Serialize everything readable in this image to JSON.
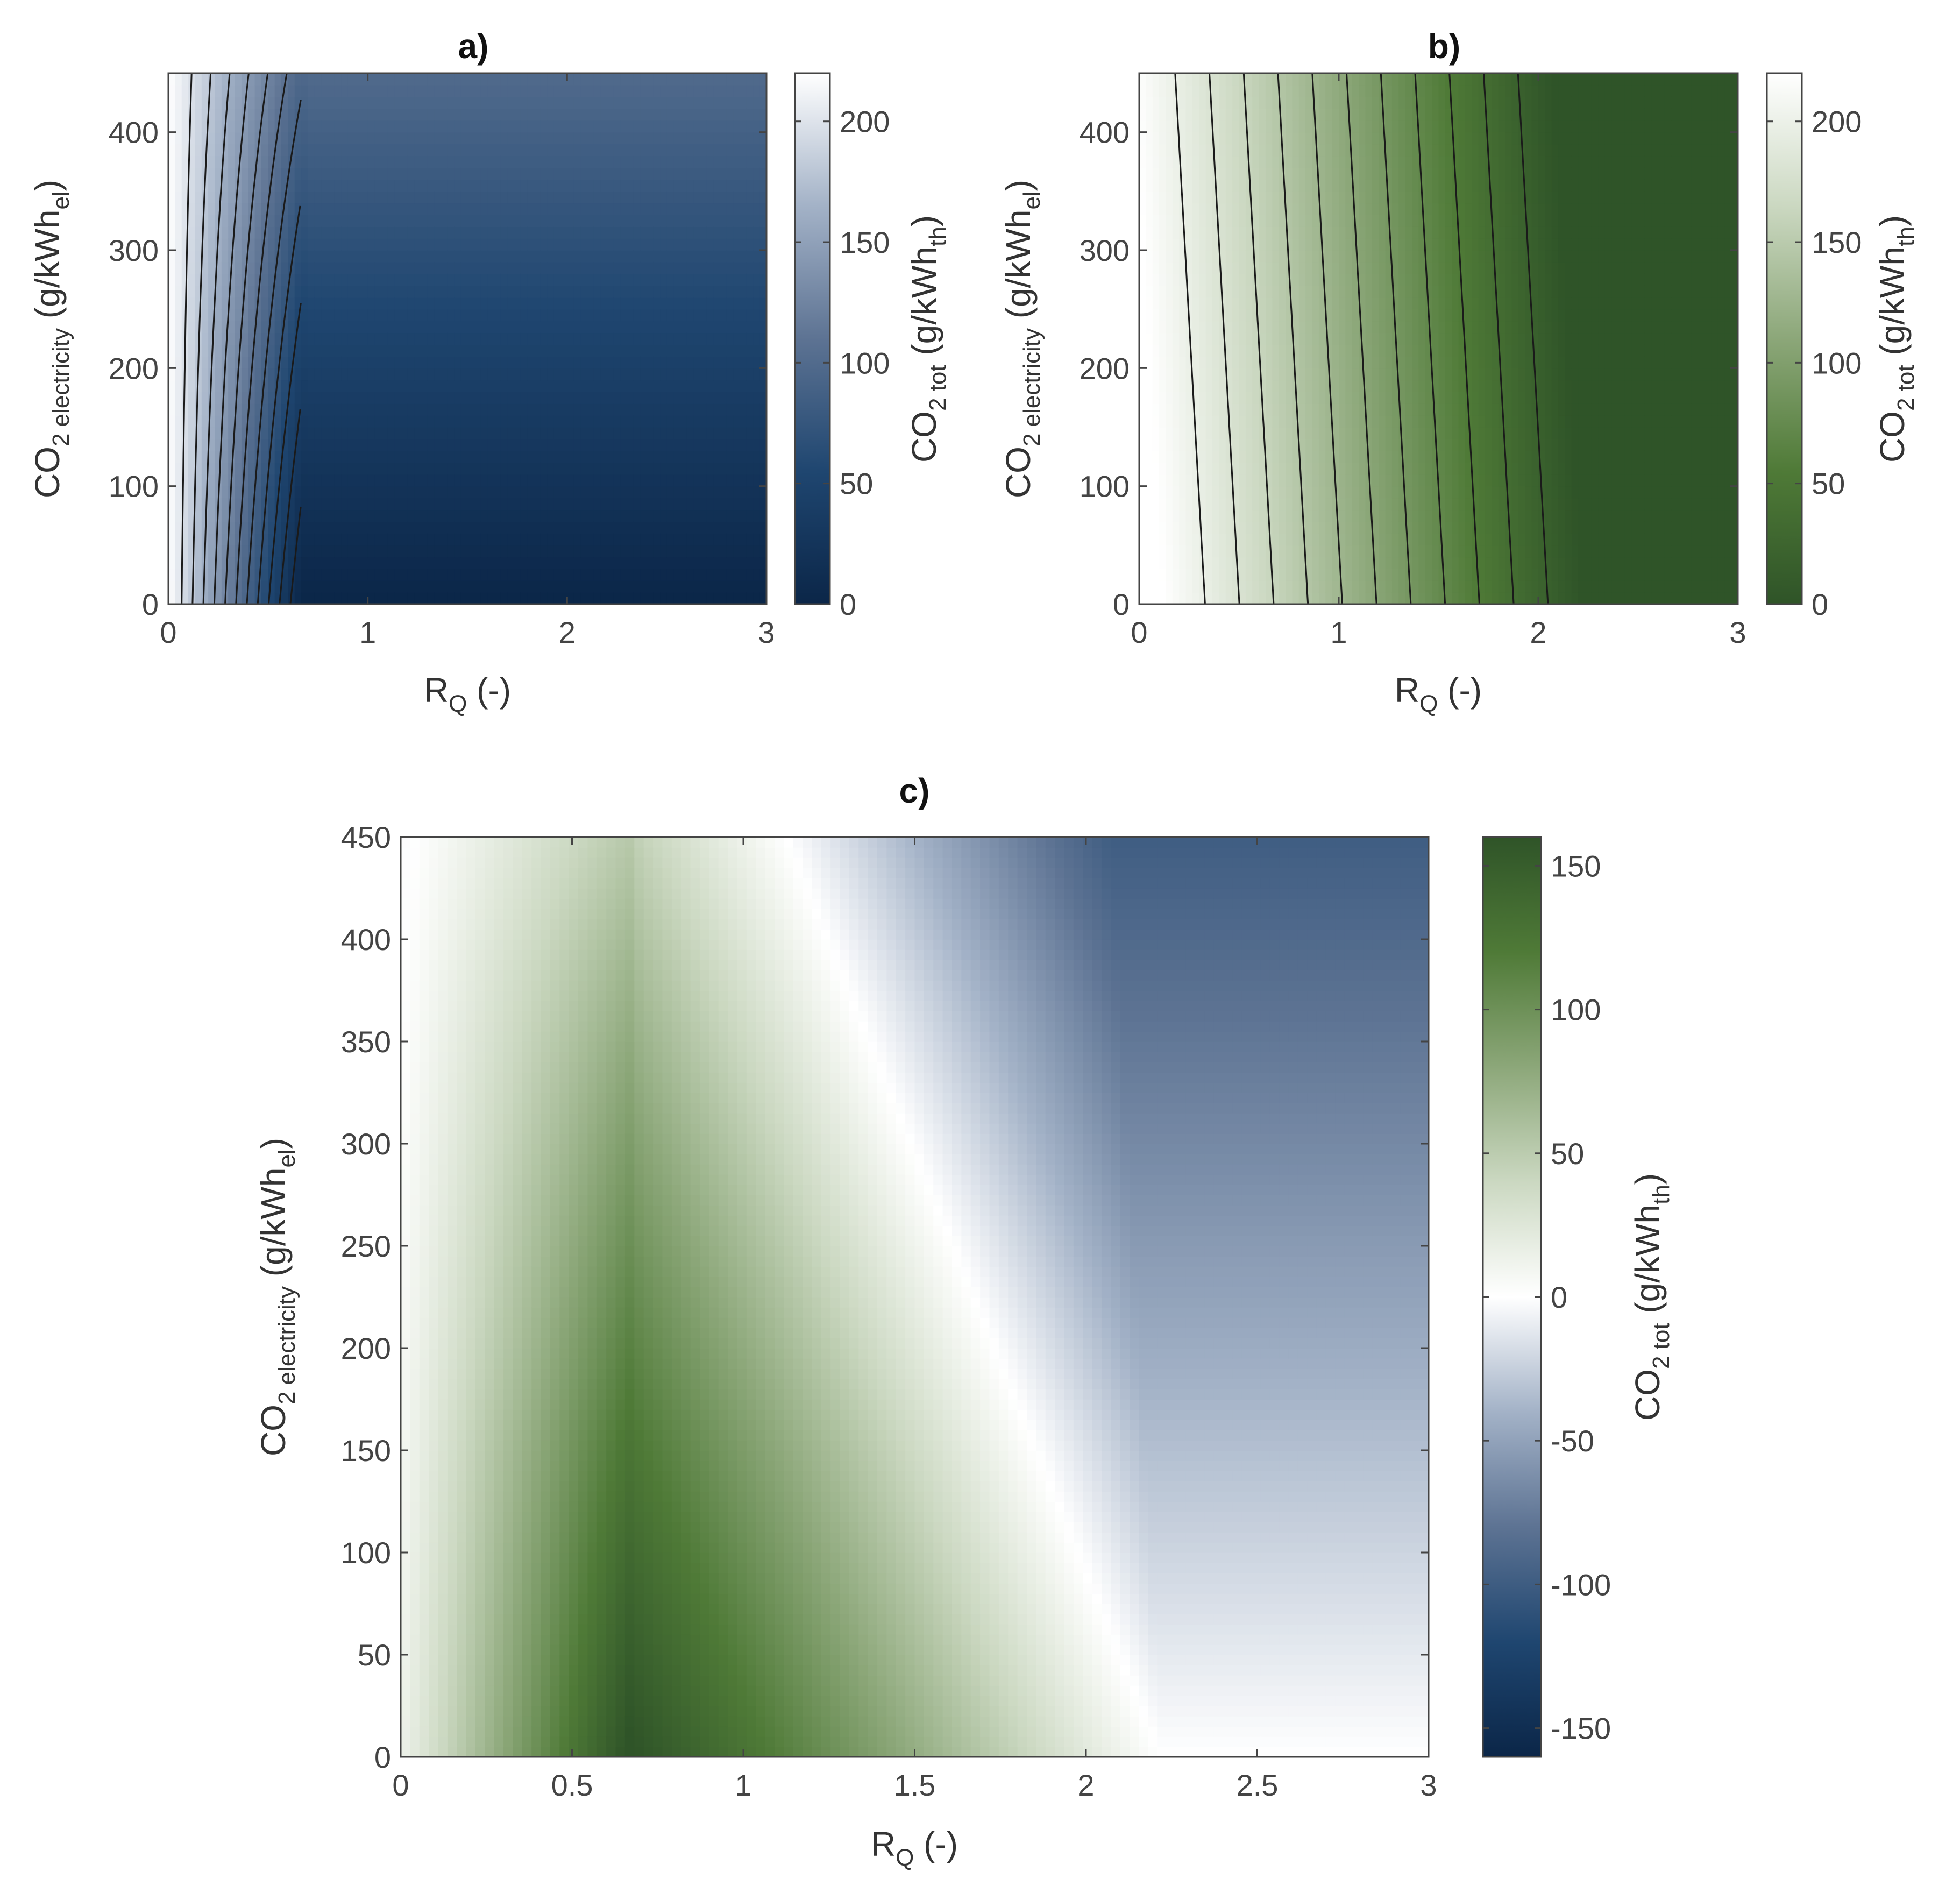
{
  "chart_data": [
    {
      "panel": "a",
      "title": "a)",
      "type": "contour",
      "x": {
        "label_main": "R",
        "label_sub": "Q",
        "label_tail": " (-)",
        "lim": [
          0,
          3
        ],
        "ticks": [
          0,
          1,
          2,
          3
        ]
      },
      "y": {
        "label_main": "CO",
        "label_sub1": "2 electricity",
        "label_mid": " (g/kWh",
        "label_sub2": "el",
        "label_tail": ")",
        "lim": [
          0,
          450
        ],
        "ticks": [
          0,
          100,
          200,
          300,
          400
        ]
      },
      "colorbar": {
        "label_main": "CO",
        "label_sub1": "2 tot",
        "label_mid": " (g/kWh",
        "label_sub2": "th",
        "label_tail": ")",
        "lim": [
          0,
          220
        ],
        "ticks": [
          0,
          50,
          100,
          150,
          200
        ]
      },
      "colormap": [
        "#0b2648",
        "#1f4670",
        "#5d7393",
        "#a3b2c7",
        "#ffffff"
      ],
      "contour_levels": [
        18,
        36,
        54,
        72,
        90,
        108,
        126,
        144,
        162,
        180,
        198
      ],
      "approx_model": "value = max(0, 220 - 330*R) + y*0.22*min(1, R/0.7)"
    },
    {
      "panel": "b",
      "title": "b)",
      "type": "contour",
      "x": {
        "label_main": "R",
        "label_sub": "Q",
        "label_tail": " (-)",
        "lim": [
          0,
          3
        ],
        "ticks": [
          0,
          1,
          2,
          3
        ]
      },
      "y": {
        "label_main": "CO",
        "label_sub1": "2 electricity",
        "label_mid": " (g/kWh",
        "label_sub2": "el",
        "label_tail": ")",
        "lim": [
          0,
          450
        ],
        "ticks": [
          0,
          100,
          200,
          300,
          400
        ]
      },
      "colorbar": {
        "label_main": "CO",
        "label_sub1": "2 tot",
        "label_mid": " (g/kWh",
        "label_sub2": "th",
        "label_tail": ")",
        "lim": [
          0,
          220
        ],
        "ticks": [
          0,
          50,
          100,
          150,
          200
        ]
      },
      "colormap": [
        "#2f5428",
        "#4f7a37",
        "#8ca779",
        "#cbd8c1",
        "#ffffff"
      ],
      "contour_levels": [
        18,
        36,
        54,
        72,
        90,
        108,
        126,
        144,
        162,
        180,
        198
      ],
      "approx_model": "value = max(0, 220*(1 - (R - 0.12 + 0.15*y/450)/2.1))"
    },
    {
      "panel": "c",
      "title": "c)",
      "type": "heatmap",
      "x": {
        "label_main": "R",
        "label_sub": "Q",
        "label_tail": " (-)",
        "lim": [
          0,
          3
        ],
        "ticks": [
          0,
          0.5,
          1,
          1.5,
          2,
          2.5,
          3
        ]
      },
      "y": {
        "label_main": "CO",
        "label_sub1": "2 electricity",
        "label_mid": " (g/kWh",
        "label_sub2": "el",
        "label_tail": ")",
        "lim": [
          0,
          450
        ],
        "ticks": [
          0,
          50,
          100,
          150,
          200,
          250,
          300,
          350,
          400,
          450
        ]
      },
      "colorbar": {
        "label_main": "CO",
        "label_sub1": "2 tot",
        "label_mid": " (g/kWh",
        "label_sub2": "th",
        "label_tail": ")",
        "lim": [
          -160,
          160
        ],
        "ticks": [
          -150,
          -100,
          -50,
          0,
          50,
          100,
          150
        ]
      },
      "colormap_negative": [
        "#0b2648",
        "#1f4670",
        "#5d7393",
        "#a3b2c7",
        "#ffffff"
      ],
      "colormap_positive": [
        "#ffffff",
        "#cbd8c1",
        "#8ca779",
        "#4f7a37",
        "#2f5428"
      ],
      "approx_model": "value = panel b minus panel a (positive = green, negative = blue)"
    }
  ]
}
